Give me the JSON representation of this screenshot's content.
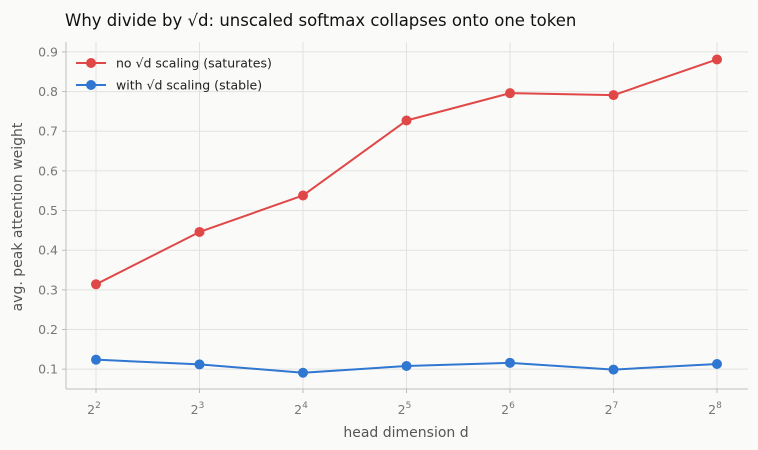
{
  "chart_data": {
    "type": "line",
    "title": "Why divide by √d: unscaled softmax collapses onto one token",
    "xlabel": "head dimension d",
    "ylabel": "avg. peak attention weight",
    "x": [
      4,
      8,
      16,
      32,
      64,
      128,
      256
    ],
    "x_ticks": [
      {
        "base": "2",
        "exp": "2"
      },
      {
        "base": "2",
        "exp": "3"
      },
      {
        "base": "2",
        "exp": "4"
      },
      {
        "base": "2",
        "exp": "5"
      },
      {
        "base": "2",
        "exp": "6"
      },
      {
        "base": "2",
        "exp": "7"
      },
      {
        "base": "2",
        "exp": "8"
      }
    ],
    "x_scale": "log2",
    "y_ticks": [
      "0.1",
      "0.2",
      "0.3",
      "0.4",
      "0.5",
      "0.6",
      "0.7",
      "0.8",
      "0.9"
    ],
    "ylim": [
      0.05,
      0.925
    ],
    "grid": true,
    "legend_position": "top-left",
    "series": [
      {
        "name": "no √d scaling (saturates)",
        "color": "#e04848",
        "values": [
          0.314,
          0.446,
          0.538,
          0.727,
          0.796,
          0.791,
          0.881
        ]
      },
      {
        "name": "with √d scaling (stable)",
        "color": "#2f77d0",
        "values": [
          0.124,
          0.112,
          0.091,
          0.108,
          0.116,
          0.099,
          0.113
        ]
      }
    ]
  }
}
